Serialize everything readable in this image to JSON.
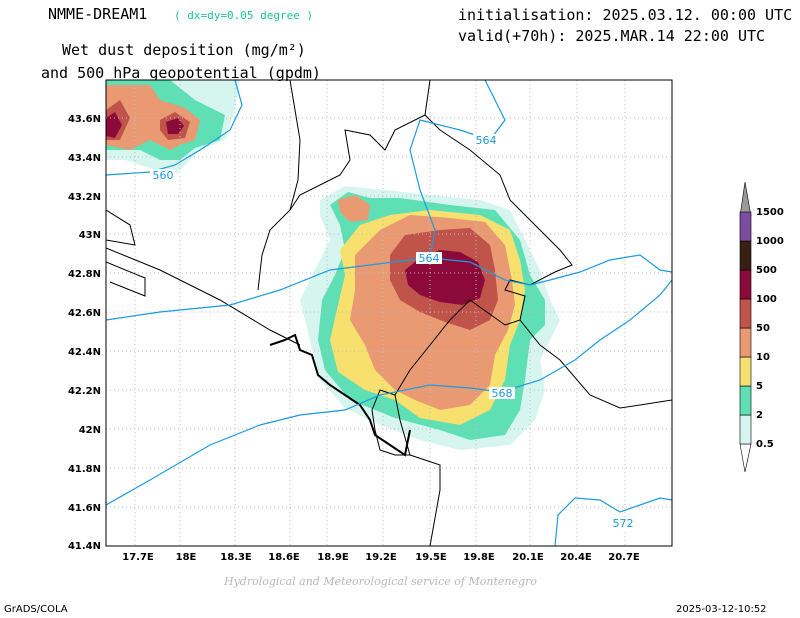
{
  "header": {
    "model": "NMME-DREAM1",
    "resolution": "( dx=dy=0.05 degree )",
    "init": "initialisation: 2025.03.12. 00:00 UTC",
    "valid": "valid(+70h): 2025.MAR.14 22:00 UTC",
    "field_line1": "Wet dust deposition (mg/m²)",
    "field_line2": "and 500 hPa geopotential (gpdm)"
  },
  "map": {
    "lat_labels": [
      "43.6N",
      "43.4N",
      "43.2N",
      "43N",
      "42.8N",
      "42.6N",
      "42.4N",
      "42.2N",
      "42N",
      "41.8N",
      "41.6N",
      "41.4N"
    ],
    "lon_labels": [
      "17.7E",
      "18E",
      "18.3E",
      "18.6E",
      "18.9E",
      "19.2E",
      "19.5E",
      "19.8E",
      "20.1E",
      "20.4E",
      "20.7E"
    ],
    "contour_labels": [
      "560",
      "564",
      "564",
      "568",
      "572"
    ],
    "credit": "Hydrological and Meteorological service of Montenegro"
  },
  "colorbar": {
    "levels": [
      "0.5",
      "2",
      "5",
      "10",
      "50",
      "100",
      "500",
      "1000",
      "1500"
    ],
    "colors": [
      "#d6f5ee",
      "#5ee0b4",
      "#f7e06e",
      "#e99a72",
      "#c0544a",
      "#8c0a3a",
      "#3a1f14",
      "#7a4da0",
      "#9a9a9a"
    ]
  },
  "footer": {
    "left": "GrADS/COLA",
    "right": "2025-03-12-10:52"
  }
}
